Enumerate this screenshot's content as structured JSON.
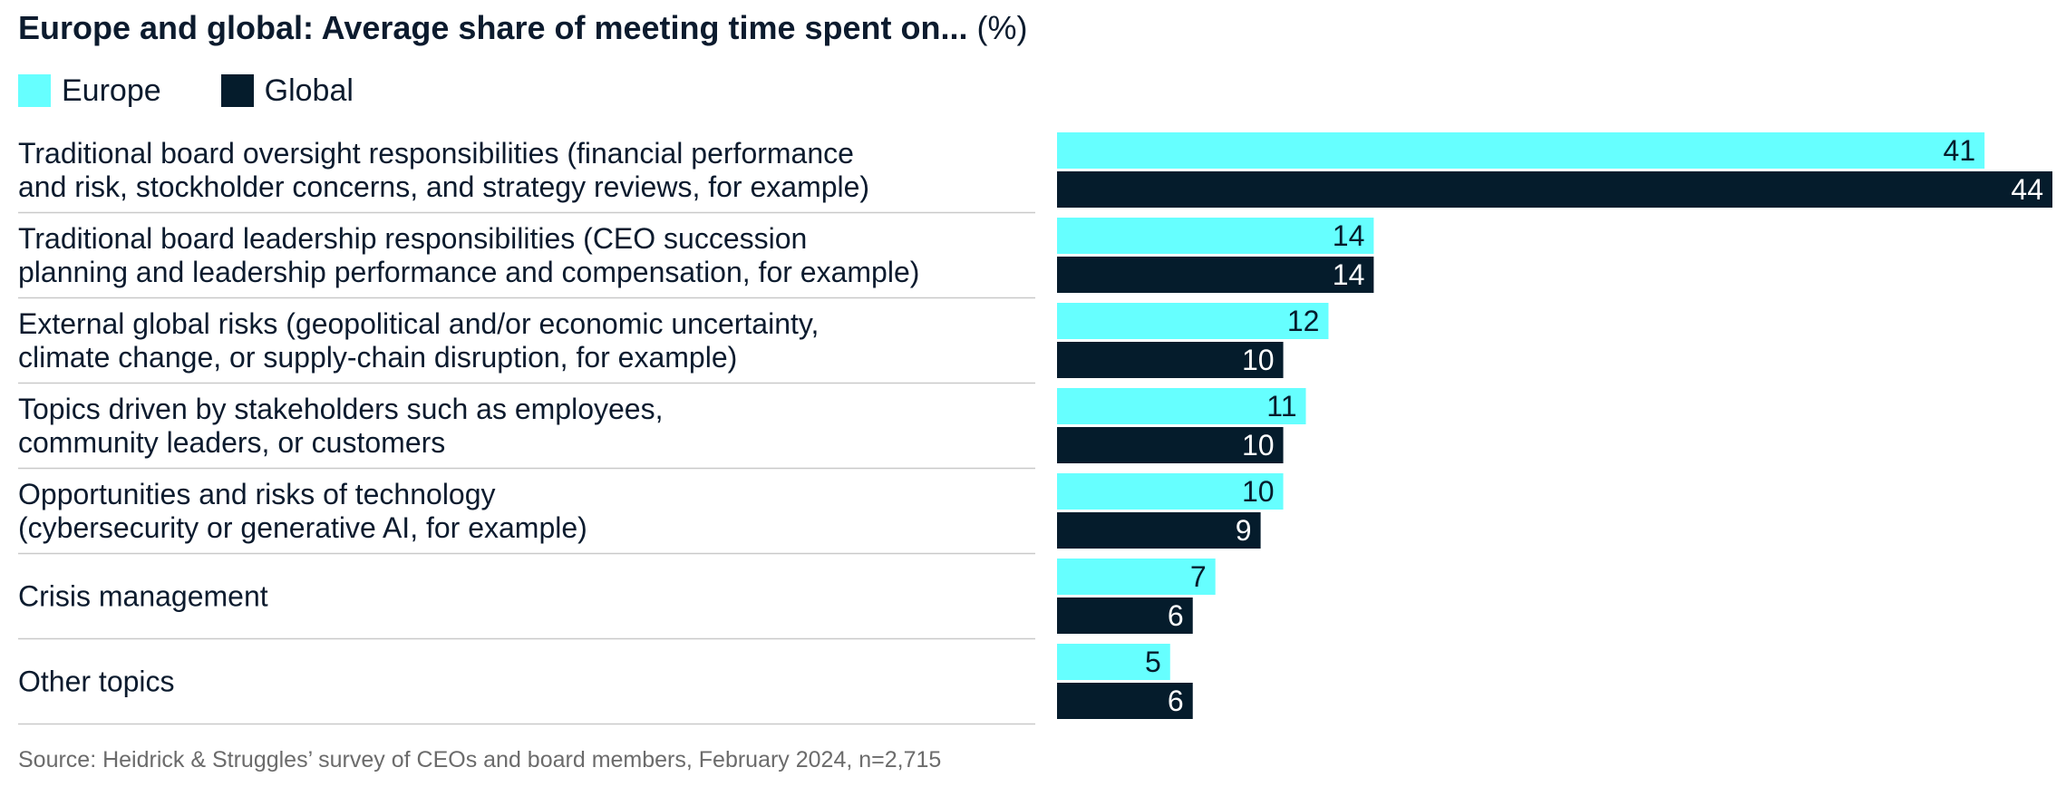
{
  "header": {
    "title": "Europe and global: Average share of meeting time spent on...",
    "unit": "(%)"
  },
  "legend": [
    {
      "label": "Europe",
      "color": "#66ffff"
    },
    {
      "label": "Global",
      "color": "#051c2c"
    }
  ],
  "chart_data": {
    "type": "bar",
    "orientation": "horizontal",
    "title": "Europe and global: Average share of meeting time spent on... (%)",
    "categories": [
      [
        "Traditional board oversight responsibilities (financial performance",
        "and risk, stockholder concerns, and strategy reviews, for example)"
      ],
      [
        "Traditional board leadership responsibilities (CEO succession",
        "planning and leadership performance and compensation, for example)"
      ],
      [
        "External global risks (geopolitical and/or economic uncertainty,",
        "climate change, or supply-chain disruption, for example)"
      ],
      [
        "Topics driven by stakeholders such as employees,",
        "community leaders, or customers"
      ],
      [
        "Opportunities and risks of technology",
        "(cybersecurity or generative AI, for example)"
      ],
      [
        "Crisis management"
      ],
      [
        "Other topics"
      ]
    ],
    "series": [
      {
        "name": "Europe",
        "color": "#66ffff",
        "values": [
          41,
          14,
          12,
          11,
          10,
          7,
          5
        ]
      },
      {
        "name": "Global",
        "color": "#051c2c",
        "values": [
          44,
          14,
          10,
          10,
          9,
          6,
          6
        ]
      }
    ],
    "xlim": [
      0,
      44
    ],
    "grid": false,
    "legend_position": "top-left"
  },
  "footer": {
    "source": "Source: Heidrick & Struggles’ survey of CEOs and board members, February 2024, n=2,715"
  }
}
